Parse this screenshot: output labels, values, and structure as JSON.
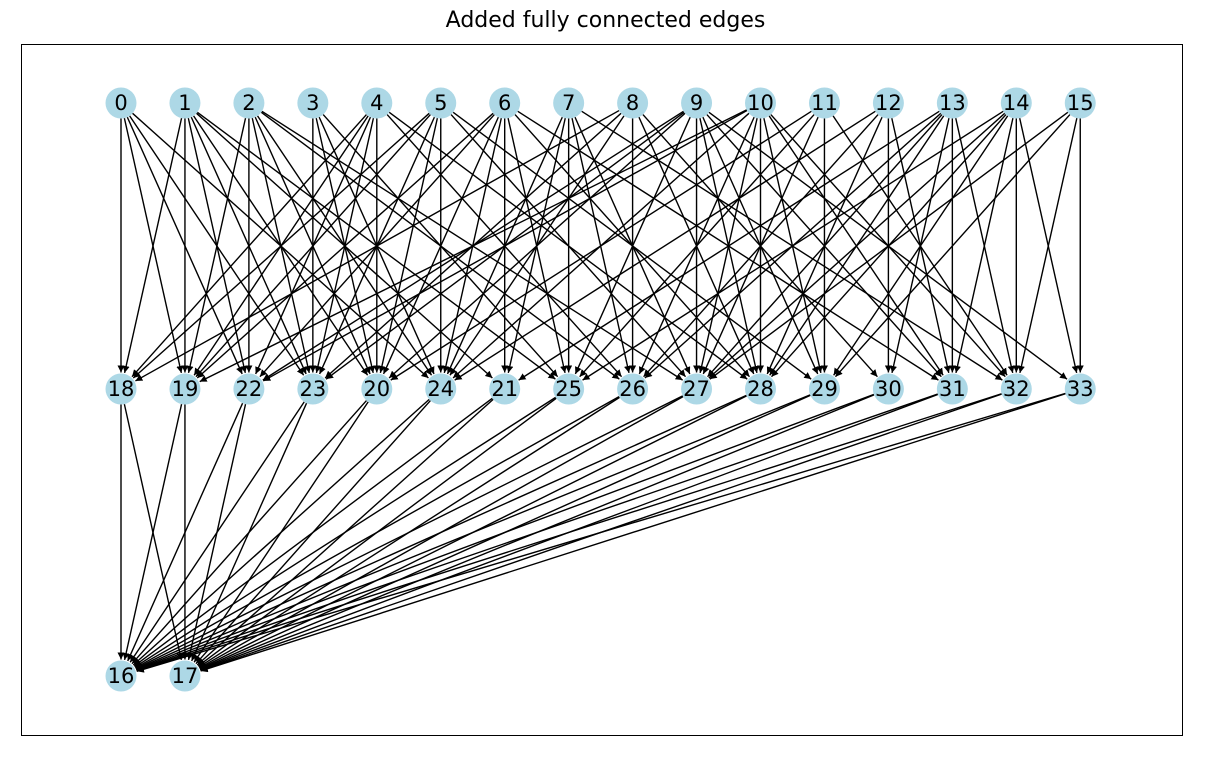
{
  "title": "Added fully connected edges",
  "node_color": "#add8e6",
  "edge_color": "#000000",
  "layers": {
    "top": [
      "0",
      "1",
      "2",
      "3",
      "4",
      "5",
      "6",
      "7",
      "8",
      "9",
      "10",
      "11",
      "12",
      "13",
      "14",
      "15"
    ],
    "middle": [
      "18",
      "19",
      "22",
      "23",
      "20",
      "24",
      "21",
      "25",
      "26",
      "27",
      "28",
      "29",
      "30",
      "31",
      "32",
      "33"
    ],
    "bottom": [
      "16",
      "17"
    ]
  },
  "edges_top_to_middle": [
    [
      "0",
      "18"
    ],
    [
      "0",
      "19"
    ],
    [
      "0",
      "22"
    ],
    [
      "0",
      "23"
    ],
    [
      "0",
      "24"
    ],
    [
      "1",
      "18"
    ],
    [
      "1",
      "19"
    ],
    [
      "1",
      "22"
    ],
    [
      "1",
      "23"
    ],
    [
      "1",
      "20"
    ],
    [
      "1",
      "21"
    ],
    [
      "1",
      "25"
    ],
    [
      "2",
      "19"
    ],
    [
      "2",
      "22"
    ],
    [
      "2",
      "23"
    ],
    [
      "2",
      "20"
    ],
    [
      "2",
      "24"
    ],
    [
      "2",
      "26"
    ],
    [
      "2",
      "27"
    ],
    [
      "3",
      "23"
    ],
    [
      "3",
      "20"
    ],
    [
      "3",
      "24"
    ],
    [
      "3",
      "25"
    ],
    [
      "4",
      "18"
    ],
    [
      "4",
      "19"
    ],
    [
      "4",
      "22"
    ],
    [
      "4",
      "23"
    ],
    [
      "4",
      "20"
    ],
    [
      "4",
      "26"
    ],
    [
      "4",
      "28"
    ],
    [
      "5",
      "18"
    ],
    [
      "5",
      "19"
    ],
    [
      "5",
      "23"
    ],
    [
      "5",
      "20"
    ],
    [
      "5",
      "24"
    ],
    [
      "5",
      "27"
    ],
    [
      "5",
      "29"
    ],
    [
      "6",
      "19"
    ],
    [
      "6",
      "22"
    ],
    [
      "6",
      "20"
    ],
    [
      "6",
      "24"
    ],
    [
      "6",
      "21"
    ],
    [
      "6",
      "25"
    ],
    [
      "6",
      "28"
    ],
    [
      "6",
      "31"
    ],
    [
      "7",
      "24"
    ],
    [
      "7",
      "21"
    ],
    [
      "7",
      "25"
    ],
    [
      "7",
      "26"
    ],
    [
      "7",
      "27"
    ],
    [
      "7",
      "32"
    ],
    [
      "8",
      "18"
    ],
    [
      "8",
      "23"
    ],
    [
      "8",
      "24"
    ],
    [
      "8",
      "26"
    ],
    [
      "8",
      "28"
    ],
    [
      "8",
      "30"
    ],
    [
      "9",
      "22"
    ],
    [
      "9",
      "23"
    ],
    [
      "9",
      "20"
    ],
    [
      "9",
      "25"
    ],
    [
      "9",
      "27"
    ],
    [
      "9",
      "28"
    ],
    [
      "9",
      "29"
    ],
    [
      "9",
      "31"
    ],
    [
      "9",
      "33"
    ],
    [
      "10",
      "19"
    ],
    [
      "10",
      "22"
    ],
    [
      "10",
      "24"
    ],
    [
      "10",
      "26"
    ],
    [
      "10",
      "27"
    ],
    [
      "10",
      "28"
    ],
    [
      "10",
      "29"
    ],
    [
      "10",
      "31"
    ],
    [
      "10",
      "32"
    ],
    [
      "11",
      "20"
    ],
    [
      "11",
      "25"
    ],
    [
      "11",
      "27"
    ],
    [
      "11",
      "29"
    ],
    [
      "11",
      "32"
    ],
    [
      "12",
      "24"
    ],
    [
      "12",
      "26"
    ],
    [
      "12",
      "28"
    ],
    [
      "12",
      "30"
    ],
    [
      "12",
      "31"
    ],
    [
      "13",
      "21"
    ],
    [
      "13",
      "26"
    ],
    [
      "13",
      "27"
    ],
    [
      "13",
      "28"
    ],
    [
      "13",
      "30"
    ],
    [
      "13",
      "31"
    ],
    [
      "13",
      "32"
    ],
    [
      "14",
      "25"
    ],
    [
      "14",
      "27"
    ],
    [
      "14",
      "28"
    ],
    [
      "14",
      "29"
    ],
    [
      "14",
      "31"
    ],
    [
      "14",
      "32"
    ],
    [
      "14",
      "33"
    ],
    [
      "15",
      "27"
    ],
    [
      "15",
      "29"
    ],
    [
      "15",
      "32"
    ],
    [
      "15",
      "33"
    ]
  ]
}
